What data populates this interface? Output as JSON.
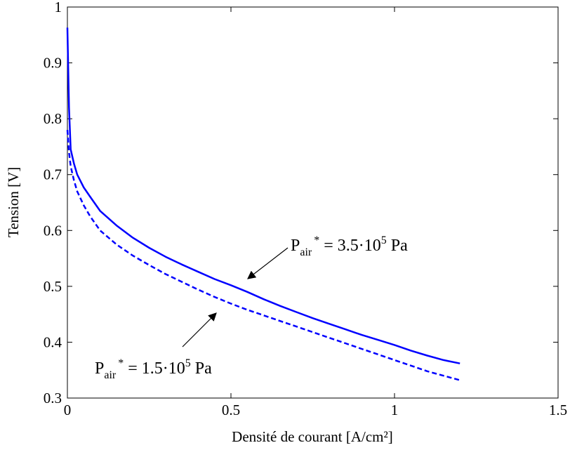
{
  "chart_data": {
    "type": "line",
    "xlabel": "Densité de courant [A/cm²]",
    "ylabel": "Tension [V]",
    "xlim": [
      0,
      1.5
    ],
    "ylim": [
      0.3,
      1
    ],
    "xticks": [
      0,
      0.5,
      1,
      1.5
    ],
    "xtick_labels": [
      "0",
      "0.5",
      "1",
      "1.5"
    ],
    "yticks": [
      0.3,
      0.4,
      0.5,
      0.6,
      0.7,
      0.8,
      0.9,
      1
    ],
    "ytick_labels": [
      "0.3",
      "0.4",
      "0.5",
      "0.6",
      "0.7",
      "0.8",
      "0.9",
      "1"
    ],
    "grid": false,
    "series_color": "#0000ff",
    "series": [
      {
        "style": "solid",
        "x": [
          0.0,
          0.005,
          0.01,
          0.02,
          0.03,
          0.05,
          0.07,
          0.1,
          0.15,
          0.2,
          0.25,
          0.3,
          0.35,
          0.4,
          0.45,
          0.5,
          0.55,
          0.6,
          0.65,
          0.7,
          0.75,
          0.8,
          0.85,
          0.9,
          0.95,
          1.0,
          1.05,
          1.1,
          1.15,
          1.2
        ],
        "y": [
          0.963,
          0.82,
          0.745,
          0.72,
          0.7,
          0.677,
          0.66,
          0.635,
          0.609,
          0.587,
          0.569,
          0.553,
          0.539,
          0.526,
          0.513,
          0.502,
          0.49,
          0.477,
          0.465,
          0.454,
          0.443,
          0.433,
          0.423,
          0.413,
          0.404,
          0.395,
          0.385,
          0.376,
          0.368,
          0.362
        ]
      },
      {
        "style": "dashed",
        "x": [
          0.0,
          0.005,
          0.01,
          0.02,
          0.03,
          0.05,
          0.07,
          0.1,
          0.15,
          0.2,
          0.25,
          0.3,
          0.35,
          0.4,
          0.45,
          0.5,
          0.55,
          0.6,
          0.65,
          0.7,
          0.75,
          0.8,
          0.85,
          0.9,
          0.95,
          1.0,
          1.05,
          1.1,
          1.15,
          1.2
        ],
        "y": [
          0.78,
          0.74,
          0.715,
          0.69,
          0.67,
          0.645,
          0.625,
          0.6,
          0.575,
          0.555,
          0.538,
          0.522,
          0.508,
          0.494,
          0.481,
          0.469,
          0.458,
          0.448,
          0.438,
          0.428,
          0.418,
          0.408,
          0.398,
          0.388,
          0.378,
          0.368,
          0.358,
          0.348,
          0.34,
          0.332
        ]
      }
    ],
    "annotations": [
      {
        "id": "solid",
        "prefix": "P",
        "subscript": "air",
        "superscript": "*",
        "middle": " = 3.5·10",
        "exponent": "5",
        "suffix": " Pa"
      },
      {
        "id": "dashed",
        "prefix": "P",
        "subscript": "air",
        "superscript": "*",
        "middle": " = 1.5·10",
        "exponent": "5",
        "suffix": " Pa"
      }
    ]
  }
}
